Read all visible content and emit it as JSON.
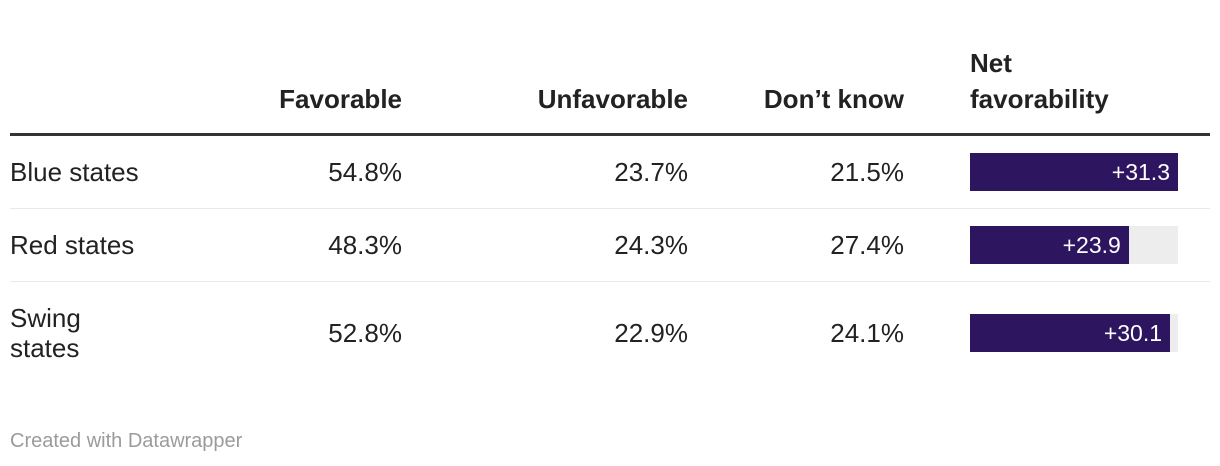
{
  "colors": {
    "bar": "#2d1560",
    "bar_track": "#ededed",
    "header_rule": "#333333",
    "row_divider": "#e9e9e9",
    "text": "#222222",
    "bar_label": "#ffffff",
    "credit": "#9b9b9b",
    "background": "#ffffff"
  },
  "chart_data": {
    "type": "table",
    "columns": [
      "",
      "Favorable",
      "Unfavorable",
      "Don’t know",
      "Net favorability"
    ],
    "rows": [
      {
        "label": "Blue states",
        "favorable": "54.8%",
        "unfavorable": "23.7%",
        "dont_know": "21.5%",
        "net_value": 31.3,
        "net_label": "+31.3"
      },
      {
        "label": "Red states",
        "favorable": "48.3%",
        "unfavorable": "24.3%",
        "dont_know": "27.4%",
        "net_value": 23.9,
        "net_label": "+23.9"
      },
      {
        "label": "Swing states",
        "favorable": "52.8%",
        "unfavorable": "22.9%",
        "dont_know": "24.1%",
        "net_value": 30.1,
        "net_label": "+30.1"
      }
    ],
    "net_bar_axis": {
      "min": 0,
      "max": 31.3
    },
    "layout": {
      "grid": "off",
      "bar_column_legend": "inside-bar-right-aligned"
    }
  },
  "footer": {
    "credit": "Created with Datawrapper"
  }
}
